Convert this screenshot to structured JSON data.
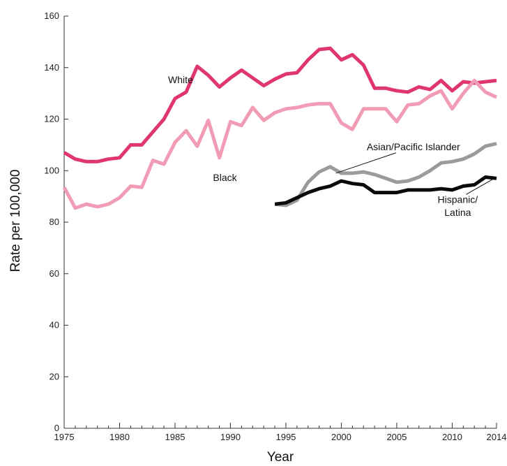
{
  "chart_data": {
    "type": "line",
    "title": "",
    "xlabel": "Year",
    "ylabel": "Rate per 100,000",
    "xlim": [
      1975,
      2014
    ],
    "ylim": [
      0,
      160
    ],
    "x_ticks": [
      "1975",
      "1980",
      "1985",
      "1990",
      "1995",
      "2000",
      "2005",
      "2010",
      "2014"
    ],
    "y_ticks": [
      "0",
      "20",
      "40",
      "60",
      "80",
      "100",
      "120",
      "140",
      "160"
    ],
    "grid": false,
    "legend": "none",
    "series": [
      {
        "name": "White",
        "color": "#e0366e",
        "x": [
          1975,
          1976,
          1977,
          1978,
          1979,
          1980,
          1981,
          1982,
          1983,
          1984,
          1985,
          1986,
          1987,
          1988,
          1989,
          1990,
          1991,
          1992,
          1993,
          1994,
          1995,
          1996,
          1997,
          1998,
          1999,
          2000,
          2001,
          2002,
          2003,
          2004,
          2005,
          2006,
          2007,
          2008,
          2009,
          2010,
          2011,
          2012,
          2013,
          2014
        ],
        "y": [
          107,
          104.5,
          103.5,
          103.5,
          104.5,
          105,
          110,
          110,
          115,
          120,
          128,
          130.5,
          140.5,
          137,
          132.5,
          136,
          139,
          136,
          133,
          135.5,
          137.5,
          138,
          143,
          147,
          147.5,
          143,
          145,
          141,
          132,
          132,
          131,
          130.5,
          132.5,
          131.5,
          135,
          131,
          134.5,
          134,
          134.5,
          135
        ]
      },
      {
        "name": "Black",
        "color": "#f19bb4",
        "x": [
          1975,
          1976,
          1977,
          1978,
          1979,
          1980,
          1981,
          1982,
          1983,
          1984,
          1985,
          1986,
          1987,
          1988,
          1989,
          1990,
          1991,
          1992,
          1993,
          1994,
          1995,
          1996,
          1997,
          1998,
          1999,
          2000,
          2001,
          2002,
          2003,
          2004,
          2005,
          2006,
          2007,
          2008,
          2009,
          2010,
          2011,
          2012,
          2013,
          2014
        ],
        "y": [
          93.5,
          85.5,
          87,
          86,
          87,
          89.5,
          94,
          93.5,
          104,
          102.5,
          111,
          115.5,
          109.5,
          119.5,
          105,
          119,
          117.5,
          124.5,
          119.5,
          122.5,
          124,
          124.5,
          125.5,
          126,
          126,
          118.5,
          116,
          124,
          124,
          124,
          119,
          125.5,
          126,
          129,
          131,
          124,
          130,
          135,
          130.5,
          128.5
        ]
      },
      {
        "name": "Asian/Pacific Islander",
        "color": "#9b9b9b",
        "x": [
          1994,
          1995,
          1996,
          1997,
          1998,
          1999,
          2000,
          2001,
          2002,
          2003,
          2004,
          2005,
          2006,
          2007,
          2008,
          2009,
          2010,
          2011,
          2012,
          2013,
          2014
        ],
        "y": [
          87,
          86.5,
          88.5,
          95.5,
          99.5,
          101.5,
          99,
          99,
          99.5,
          98.5,
          97,
          95.5,
          96,
          97.5,
          100,
          103,
          103.5,
          104.5,
          106.5,
          109.5,
          110.5
        ]
      },
      {
        "name": "Hispanic/ Latina",
        "color": "#0a0a0a",
        "x": [
          1994,
          1995,
          1996,
          1997,
          1998,
          1999,
          2000,
          2001,
          2002,
          2003,
          2004,
          2005,
          2006,
          2007,
          2008,
          2009,
          2010,
          2011,
          2012,
          2013,
          2014
        ],
        "y": [
          87,
          87.5,
          89.5,
          91.5,
          93,
          94,
          96,
          95,
          94.5,
          91.5,
          91.5,
          91.5,
          92.5,
          92.5,
          92.5,
          93,
          92.5,
          94,
          94.5,
          97.5,
          97
        ]
      }
    ],
    "annotations": [
      {
        "text": "White",
        "at": [
          1985.5,
          134
        ]
      },
      {
        "text": "Black",
        "at": [
          1989.5,
          96
        ]
      },
      {
        "text": "Asian/Pacific Islander",
        "at": [
          2006.5,
          108
        ],
        "leader_to": [
          1999.5,
          99
        ]
      },
      {
        "text": "Hispanic/",
        "at": [
          2010.5,
          87.5
        ],
        "leader_to": [
          2013.8,
          97
        ]
      },
      {
        "text": "Latina",
        "at": [
          2010.5,
          82.5
        ]
      }
    ]
  }
}
